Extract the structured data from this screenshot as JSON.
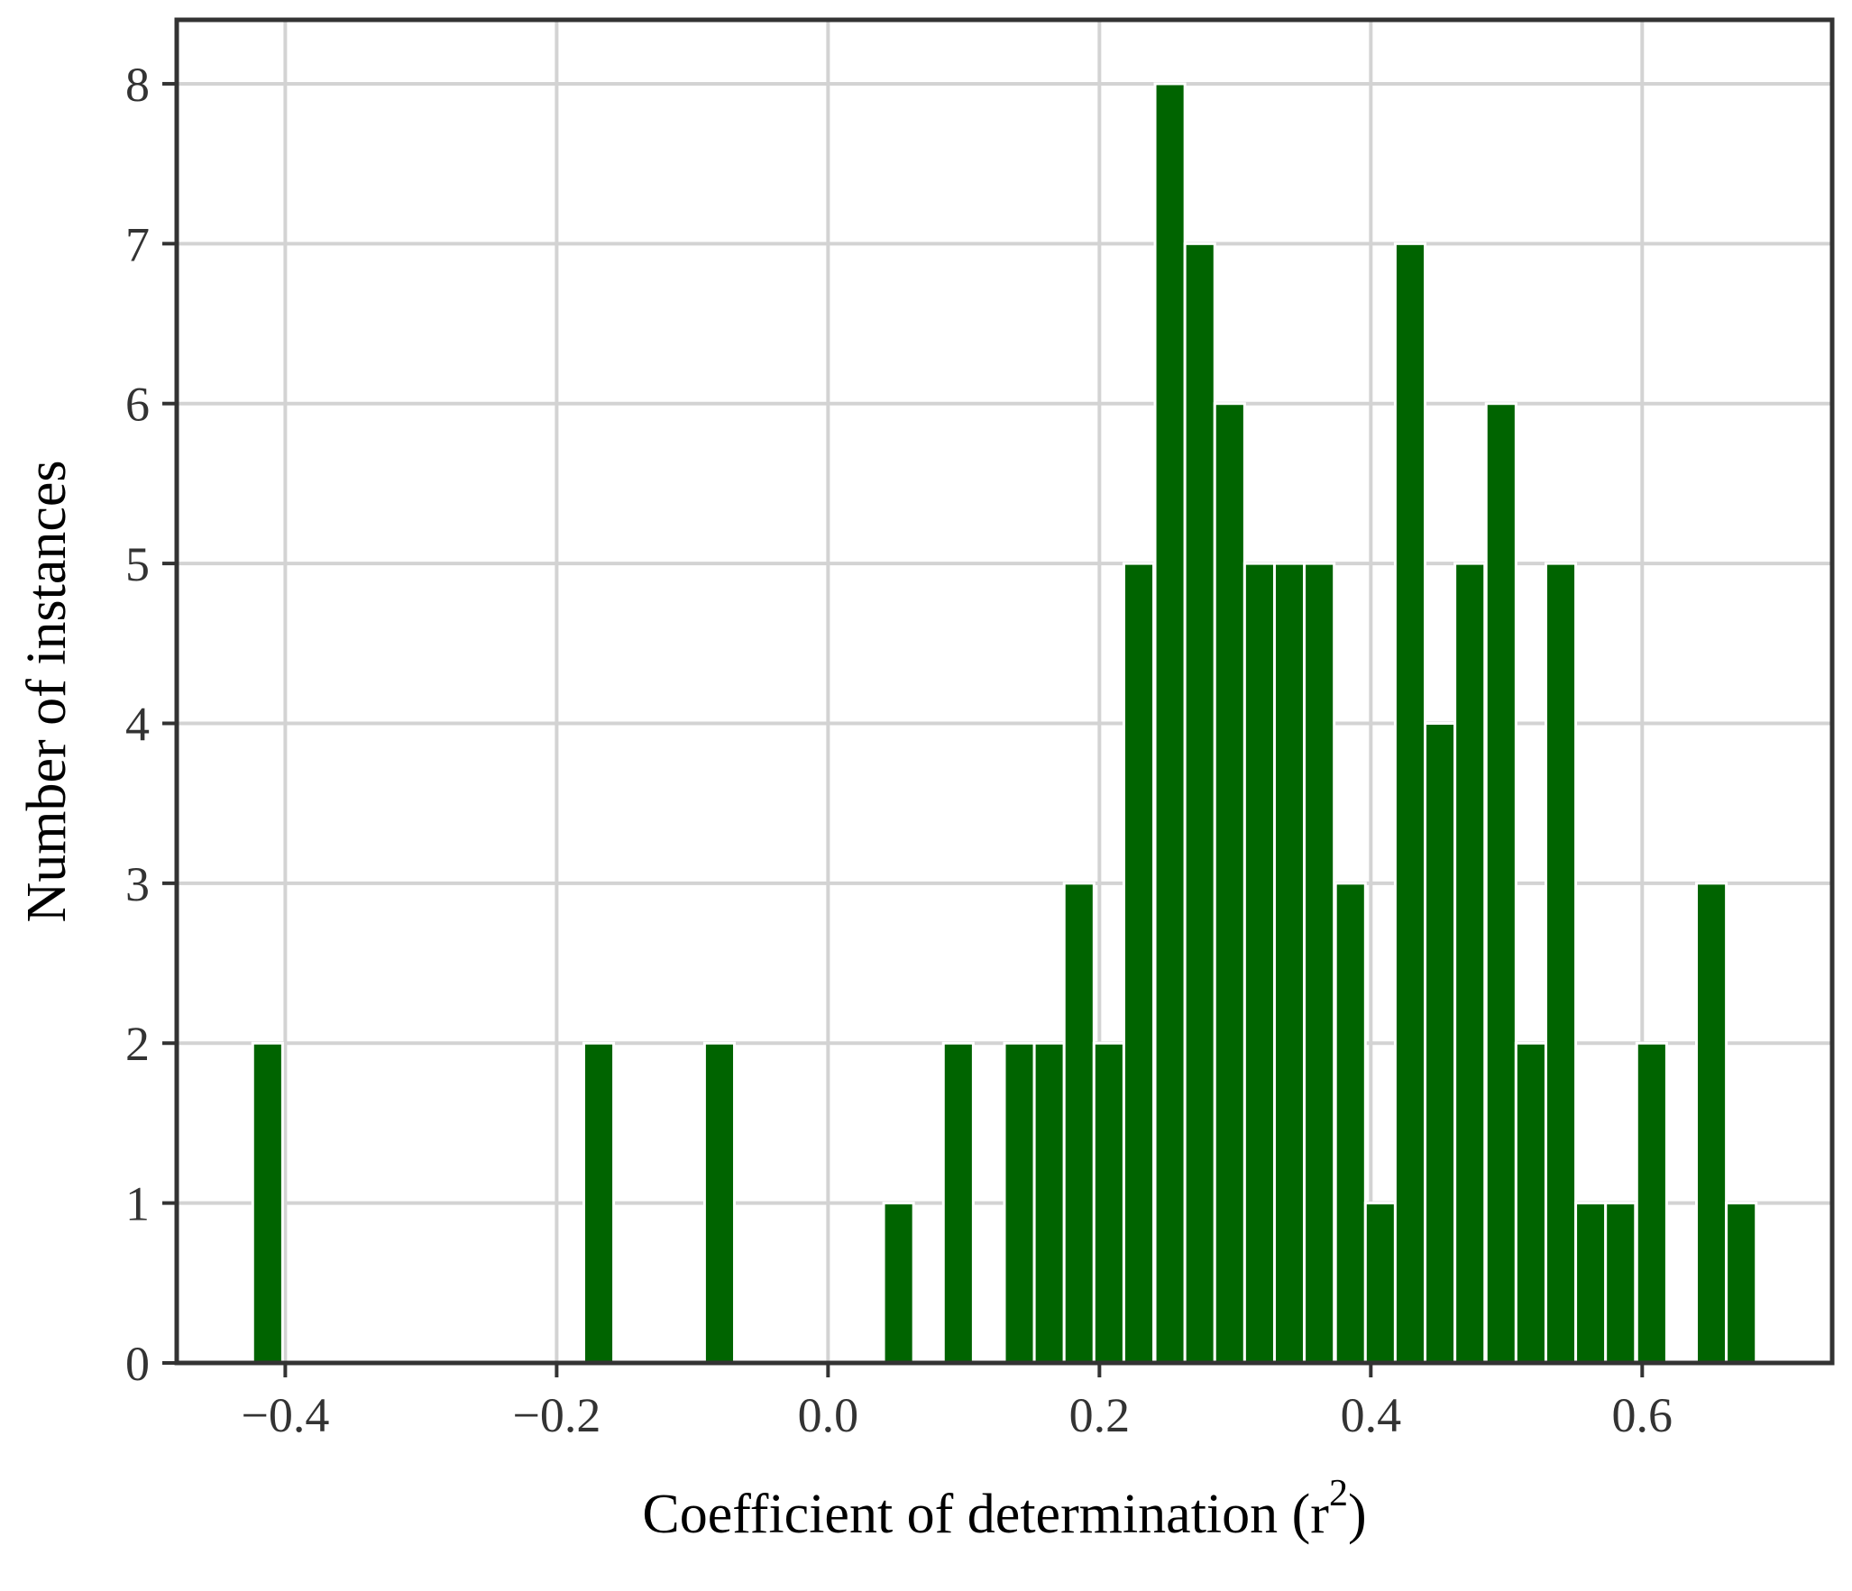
{
  "chart_data": {
    "type": "bar",
    "title": "",
    "xlabel": "Coefficient of determination (r",
    "xlabel_superscript": "2",
    "xlabel_suffix": ")",
    "ylabel": "Number of instances",
    "xlim": [
      -0.48,
      0.74
    ],
    "ylim": [
      0,
      8.4
    ],
    "x_ticks": [
      -0.4,
      -0.2,
      0.0,
      0.2,
      0.4,
      0.6
    ],
    "x_tick_labels": [
      "−0.4",
      "−0.2",
      "0.0",
      "0.2",
      "0.4",
      "0.6"
    ],
    "y_ticks": [
      0,
      1,
      2,
      3,
      4,
      5,
      6,
      7,
      8
    ],
    "y_tick_labels": [
      "0",
      "1",
      "2",
      "3",
      "4",
      "5",
      "6",
      "7",
      "8"
    ],
    "grid": true,
    "bar_width": 0.022,
    "bar_color": "#006400",
    "bars": [
      {
        "x": -0.413,
        "value": 2
      },
      {
        "x": -0.169,
        "value": 2
      },
      {
        "x": -0.08,
        "value": 2
      },
      {
        "x": 0.052,
        "value": 1
      },
      {
        "x": 0.096,
        "value": 2
      },
      {
        "x": 0.141,
        "value": 2
      },
      {
        "x": 0.163,
        "value": 2
      },
      {
        "x": 0.185,
        "value": 3
      },
      {
        "x": 0.207,
        "value": 2
      },
      {
        "x": 0.229,
        "value": 5
      },
      {
        "x": 0.252,
        "value": 8
      },
      {
        "x": 0.274,
        "value": 7
      },
      {
        "x": 0.296,
        "value": 6
      },
      {
        "x": 0.318,
        "value": 5
      },
      {
        "x": 0.34,
        "value": 5
      },
      {
        "x": 0.362,
        "value": 5
      },
      {
        "x": 0.385,
        "value": 3
      },
      {
        "x": 0.407,
        "value": 1
      },
      {
        "x": 0.429,
        "value": 7
      },
      {
        "x": 0.451,
        "value": 4
      },
      {
        "x": 0.473,
        "value": 5
      },
      {
        "x": 0.496,
        "value": 6
      },
      {
        "x": 0.518,
        "value": 2
      },
      {
        "x": 0.54,
        "value": 5
      },
      {
        "x": 0.562,
        "value": 1
      },
      {
        "x": 0.584,
        "value": 1
      },
      {
        "x": 0.607,
        "value": 2
      },
      {
        "x": 0.651,
        "value": 3
      },
      {
        "x": 0.673,
        "value": 1
      }
    ]
  }
}
